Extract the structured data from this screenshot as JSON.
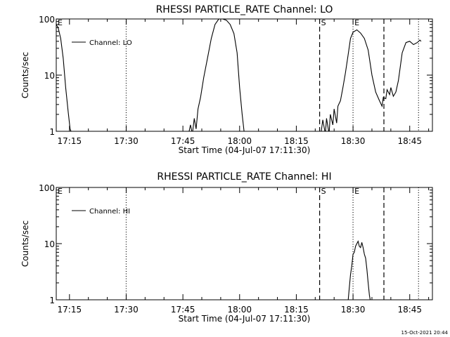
{
  "footer_timestamp": "15-Oct-2021 20:44",
  "chart_data": [
    {
      "type": "line",
      "title": "RHESSI PARTICLE_RATE Channel: LO",
      "xlabel": "Start Time (04-Jul-07 17:11:30)",
      "ylabel": "Counts/sec",
      "xlim": [
        "17:11:30",
        "18:51:00"
      ],
      "ylim": [
        1,
        100
      ],
      "y_scale": "log",
      "x_ticks": [
        "17:15",
        "17:30",
        "17:45",
        "18:00",
        "18:15",
        "18:30",
        "18:45"
      ],
      "y_ticks": [
        "1",
        "10",
        "100"
      ],
      "legend_placement": "top-left",
      "series": [
        {
          "name": "Channel: LO",
          "x": [
            "17:11:30",
            "17:12:00",
            "17:12:40",
            "17:13:20",
            "17:14:00",
            "17:14:40",
            "17:15:10",
            "17:15:40",
            "17:46:30",
            "17:47:00",
            "17:47:30",
            "17:48:00",
            "17:48:30",
            "17:49:00",
            "17:49:40",
            "17:50:30",
            "17:51:30",
            "17:52:30",
            "17:53:30",
            "17:54:30",
            "17:55:30",
            "17:56:30",
            "17:57:30",
            "17:58:30",
            "17:59:20",
            "18:00:00",
            "18:00:40",
            "18:01:10",
            "18:21:30",
            "18:22:00",
            "18:22:40",
            "18:23:00",
            "18:23:40",
            "18:24:00",
            "18:24:40",
            "18:25:00",
            "18:25:40",
            "18:26:00",
            "18:26:40",
            "18:27:20",
            "18:28:00",
            "18:28:40",
            "18:29:20",
            "18:30:00",
            "18:31:00",
            "18:32:00",
            "18:33:00",
            "18:34:00",
            "18:35:00",
            "18:36:00",
            "18:37:00",
            "18:37:40",
            "18:38:00",
            "18:38:40",
            "18:39:00",
            "18:39:40",
            "18:40:00",
            "18:40:40",
            "18:41:20",
            "18:42:00",
            "18:43:00",
            "18:44:00",
            "18:45:00",
            "18:46:00",
            "18:47:00",
            "18:47:40",
            "18:48:00"
          ],
          "y": [
            80,
            70,
            45,
            20,
            6,
            2.2,
            1.1,
            0.9,
            0.9,
            1.3,
            0.9,
            1.7,
            1.1,
            2.5,
            4,
            9,
            20,
            45,
            80,
            100,
            100,
            95,
            80,
            55,
            25,
            6,
            2,
            1,
            0.9,
            1.6,
            0.9,
            1.7,
            0.9,
            2,
            1.3,
            2.5,
            1.4,
            2.8,
            3.5,
            6,
            11,
            22,
            45,
            58,
            64,
            56,
            45,
            28,
            10,
            5,
            3.5,
            2.8,
            4,
            3.8,
            5.5,
            4.5,
            6,
            4.2,
            5,
            8,
            25,
            38,
            40,
            35,
            38,
            42,
            40
          ]
        }
      ]
    },
    {
      "type": "line",
      "title": "RHESSI PARTICLE_RATE Channel: HI",
      "xlabel": "Start Time (04-Jul-07 17:11:30)",
      "ylabel": "Counts/sec",
      "xlim": [
        "17:11:30",
        "18:51:00"
      ],
      "ylim": [
        1,
        100
      ],
      "y_scale": "log",
      "x_ticks": [
        "17:15",
        "17:30",
        "17:45",
        "18:00",
        "18:15",
        "18:30",
        "18:45"
      ],
      "y_ticks": [
        "1",
        "10",
        "100"
      ],
      "legend_placement": "top-left",
      "series": [
        {
          "name": "Channel: HI",
          "x": [
            "18:28:40",
            "18:29:00",
            "18:29:20",
            "18:29:40",
            "18:30:00",
            "18:30:20",
            "18:30:40",
            "18:31:00",
            "18:31:20",
            "18:31:40",
            "18:32:00",
            "18:32:20",
            "18:32:40",
            "18:33:00",
            "18:33:20",
            "18:33:40",
            "18:34:00",
            "18:34:20",
            "18:34:40"
          ],
          "y": [
            0.9,
            1.6,
            2.8,
            4,
            6.5,
            7,
            9,
            10,
            11,
            9,
            8.5,
            10.5,
            8.5,
            6.5,
            5.5,
            3.5,
            2,
            1.2,
            0.9
          ]
        }
      ]
    }
  ],
  "event_markers": [
    {
      "label": "E",
      "time": "17:11:30",
      "line": "none"
    },
    {
      "label": "",
      "time": "17:30:00",
      "line": "dotted"
    },
    {
      "label": "S",
      "time": "18:21:10",
      "line": "dashed"
    },
    {
      "label": "E",
      "time": "18:30:00",
      "line": "dotted"
    },
    {
      "label": "",
      "time": "18:38:10",
      "line": "dashed"
    },
    {
      "label": "",
      "time": "18:47:20",
      "line": "dotted"
    }
  ]
}
